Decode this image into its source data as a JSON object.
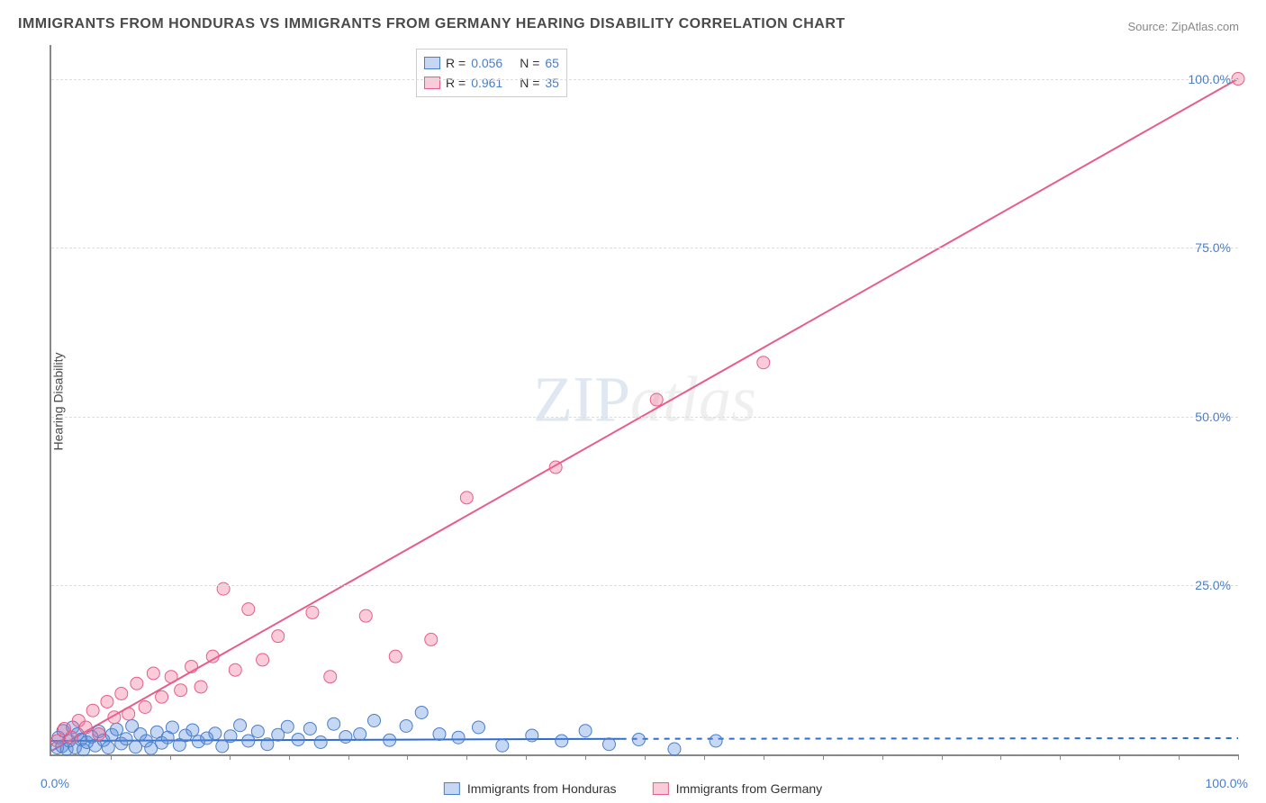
{
  "title": "IMMIGRANTS FROM HONDURAS VS IMMIGRANTS FROM GERMANY HEARING DISABILITY CORRELATION CHART",
  "source_label": "Source: ZipAtlas.com",
  "y_axis_label": "Hearing Disability",
  "watermark": {
    "zip": "ZIP",
    "atlas": "atlas"
  },
  "chart": {
    "type": "scatter",
    "xlim": [
      0,
      100
    ],
    "ylim": [
      0,
      105
    ],
    "x_origin_label": "0.0%",
    "x_max_label": "100.0%",
    "y_ticks": [
      {
        "v": 25,
        "label": "25.0%"
      },
      {
        "v": 50,
        "label": "50.0%"
      },
      {
        "v": 75,
        "label": "75.0%"
      },
      {
        "v": 100,
        "label": "100.0%"
      }
    ],
    "x_minor_tick_step": 5,
    "background_color": "#ffffff",
    "grid_color": "#dddddd",
    "axis_color": "#888888",
    "series": [
      {
        "name": "Immigrants from Honduras",
        "color_fill": "rgba(90,140,220,0.35)",
        "color_stroke": "#4a7ec7",
        "marker_radius": 7,
        "R": "0.056",
        "N": "65",
        "trend": {
          "x1": 0,
          "y1": 2.0,
          "x2": 48,
          "y2": 2.3,
          "solid_to_x": 48,
          "dash_to_x": 100,
          "dash_y": 2.4,
          "color": "#2e6bd4",
          "width": 2
        },
        "points": [
          [
            0.5,
            1.0
          ],
          [
            0.6,
            2.5
          ],
          [
            0.9,
            1.2
          ],
          [
            1.0,
            3.5
          ],
          [
            1.3,
            0.8
          ],
          [
            1.5,
            2.0
          ],
          [
            1.8,
            4.0
          ],
          [
            2.0,
            1.0
          ],
          [
            2.2,
            3.0
          ],
          [
            2.5,
            2.2
          ],
          [
            2.7,
            0.7
          ],
          [
            3.0,
            1.8
          ],
          [
            3.4,
            2.6
          ],
          [
            3.7,
            1.3
          ],
          [
            4.0,
            3.4
          ],
          [
            4.4,
            2.1
          ],
          [
            4.8,
            1.0
          ],
          [
            5.1,
            2.9
          ],
          [
            5.5,
            3.7
          ],
          [
            5.9,
            1.6
          ],
          [
            6.3,
            2.3
          ],
          [
            6.8,
            4.2
          ],
          [
            7.1,
            1.1
          ],
          [
            7.5,
            3.0
          ],
          [
            8.0,
            2.0
          ],
          [
            8.4,
            0.9
          ],
          [
            8.9,
            3.3
          ],
          [
            9.3,
            1.7
          ],
          [
            9.8,
            2.5
          ],
          [
            10.2,
            4.0
          ],
          [
            10.8,
            1.4
          ],
          [
            11.3,
            2.8
          ],
          [
            11.9,
            3.6
          ],
          [
            12.4,
            1.9
          ],
          [
            13.1,
            2.4
          ],
          [
            13.8,
            3.1
          ],
          [
            14.4,
            1.2
          ],
          [
            15.1,
            2.7
          ],
          [
            15.9,
            4.3
          ],
          [
            16.6,
            2.0
          ],
          [
            17.4,
            3.4
          ],
          [
            18.2,
            1.5
          ],
          [
            19.1,
            2.9
          ],
          [
            19.9,
            4.1
          ],
          [
            20.8,
            2.2
          ],
          [
            21.8,
            3.8
          ],
          [
            22.7,
            1.8
          ],
          [
            23.8,
            4.5
          ],
          [
            24.8,
            2.6
          ],
          [
            26.0,
            3.0
          ],
          [
            27.2,
            5.0
          ],
          [
            28.5,
            2.1
          ],
          [
            29.9,
            4.2
          ],
          [
            31.2,
            6.2
          ],
          [
            32.7,
            3.0
          ],
          [
            34.3,
            2.5
          ],
          [
            36.0,
            4.0
          ],
          [
            38.0,
            1.3
          ],
          [
            40.5,
            2.8
          ],
          [
            43.0,
            2.0
          ],
          [
            45.0,
            3.5
          ],
          [
            47.0,
            1.5
          ],
          [
            49.5,
            2.2
          ],
          [
            52.5,
            0.8
          ],
          [
            56.0,
            2.0
          ]
        ]
      },
      {
        "name": "Immigrants from Germany",
        "color_fill": "rgba(240,110,150,0.35)",
        "color_stroke": "#e75d8a",
        "marker_radius": 7,
        "R": "0.961",
        "N": "35",
        "trend": {
          "x1": 0,
          "y1": 0.5,
          "x2": 100,
          "y2": 100,
          "color": "#e75d8a",
          "width": 2
        },
        "points": [
          [
            0.5,
            2.0
          ],
          [
            1.1,
            3.8
          ],
          [
            1.7,
            2.5
          ],
          [
            2.3,
            5.0
          ],
          [
            2.9,
            4.0
          ],
          [
            3.5,
            6.5
          ],
          [
            4.0,
            3.0
          ],
          [
            4.7,
            7.8
          ],
          [
            5.3,
            5.5
          ],
          [
            5.9,
            9.0
          ],
          [
            6.5,
            6.0
          ],
          [
            7.2,
            10.5
          ],
          [
            7.9,
            7.0
          ],
          [
            8.6,
            12.0
          ],
          [
            9.3,
            8.5
          ],
          [
            10.1,
            11.5
          ],
          [
            10.9,
            9.5
          ],
          [
            11.8,
            13.0
          ],
          [
            12.6,
            10.0
          ],
          [
            13.6,
            14.5
          ],
          [
            14.5,
            24.5
          ],
          [
            15.5,
            12.5
          ],
          [
            16.6,
            21.5
          ],
          [
            17.8,
            14.0
          ],
          [
            19.1,
            17.5
          ],
          [
            22.0,
            21.0
          ],
          [
            23.5,
            11.5
          ],
          [
            26.5,
            20.5
          ],
          [
            29.0,
            14.5
          ],
          [
            32.0,
            17.0
          ],
          [
            35.0,
            38.0
          ],
          [
            42.5,
            42.5
          ],
          [
            51.0,
            52.5
          ],
          [
            60.0,
            58.0
          ],
          [
            100.0,
            100.0
          ]
        ]
      }
    ]
  },
  "legend_bottom": [
    {
      "swatch_fill": "rgba(90,140,220,0.35)",
      "swatch_stroke": "#4a7ec7",
      "label": "Immigrants from Honduras"
    },
    {
      "swatch_fill": "rgba(240,110,150,0.35)",
      "swatch_stroke": "#e75d8a",
      "label": "Immigrants from Germany"
    }
  ],
  "legend_top": {
    "r_label": "R =",
    "n_label": "N ="
  }
}
